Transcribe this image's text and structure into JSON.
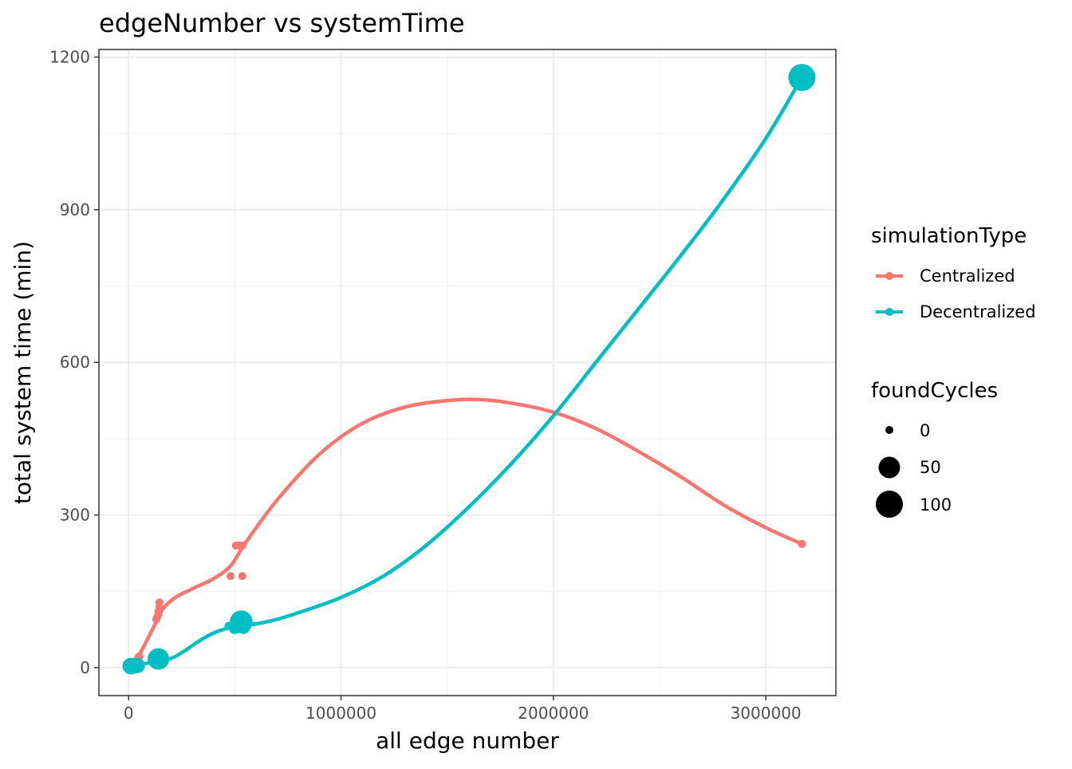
{
  "chart_data": {
    "type": "scatter",
    "title": "edgeNumber vs systemTime",
    "xlabel": "all edge number",
    "ylabel": "total system time (min)",
    "xlim": [
      -140000,
      3330000
    ],
    "ylim": [
      -55,
      1215
    ],
    "x_ticks": [
      0,
      1000000,
      2000000,
      3000000
    ],
    "x_tick_labels": [
      "0",
      "1000000",
      "2000000",
      "3000000"
    ],
    "y_ticks": [
      0,
      300,
      600,
      900,
      1200
    ],
    "y_tick_labels": [
      "0",
      "300",
      "600",
      "900",
      "1200"
    ],
    "grid": true,
    "legend_position": "right",
    "color_legend": {
      "title": "simulationType",
      "entries": [
        {
          "label": "Centralized",
          "color": "#F8766D"
        },
        {
          "label": "Decentralized",
          "color": "#00BFC4"
        }
      ]
    },
    "size_legend": {
      "title": "foundCycles",
      "entries": [
        {
          "label": "0",
          "value": 0
        },
        {
          "label": "50",
          "value": 50
        },
        {
          "label": "100",
          "value": 100
        }
      ]
    },
    "series": [
      {
        "name": "Centralized",
        "color": "#F8766D",
        "points": [
          {
            "x": 10000,
            "y": 2,
            "size": 0
          },
          {
            "x": 20000,
            "y": 5,
            "size": 0
          },
          {
            "x": 30000,
            "y": 10,
            "size": 0
          },
          {
            "x": 40000,
            "y": 15,
            "size": 0
          },
          {
            "x": 45000,
            "y": 20,
            "size": 0
          },
          {
            "x": 50000,
            "y": 22,
            "size": 0
          },
          {
            "x": 130000,
            "y": 95,
            "size": 0
          },
          {
            "x": 135000,
            "y": 100,
            "size": 0
          },
          {
            "x": 140000,
            "y": 105,
            "size": 0
          },
          {
            "x": 140000,
            "y": 110,
            "size": 0
          },
          {
            "x": 145000,
            "y": 120,
            "size": 0
          },
          {
            "x": 145000,
            "y": 128,
            "size": 0
          },
          {
            "x": 480000,
            "y": 180,
            "size": 0
          },
          {
            "x": 505000,
            "y": 240,
            "size": 0
          },
          {
            "x": 520000,
            "y": 240,
            "size": 0
          },
          {
            "x": 535000,
            "y": 240,
            "size": 0
          },
          {
            "x": 535000,
            "y": 180,
            "size": 0
          },
          {
            "x": 3170000,
            "y": 243,
            "size": 0
          }
        ],
        "smooth": [
          [
            10000,
            0
          ],
          [
            50000,
            25
          ],
          [
            130000,
            90
          ],
          [
            160000,
            115
          ],
          [
            220000,
            138
          ],
          [
            300000,
            155
          ],
          [
            400000,
            175
          ],
          [
            480000,
            200
          ],
          [
            550000,
            245
          ],
          [
            700000,
            330
          ],
          [
            900000,
            420
          ],
          [
            1100000,
            480
          ],
          [
            1300000,
            512
          ],
          [
            1500000,
            525
          ],
          [
            1640000,
            527
          ],
          [
            1800000,
            520
          ],
          [
            2000000,
            502
          ],
          [
            2200000,
            470
          ],
          [
            2400000,
            425
          ],
          [
            2600000,
            375
          ],
          [
            2800000,
            320
          ],
          [
            3000000,
            275
          ],
          [
            3170000,
            243
          ]
        ]
      },
      {
        "name": "Decentralized",
        "color": "#00BFC4",
        "points": [
          {
            "x": 10000,
            "y": 3,
            "size": 20
          },
          {
            "x": 20000,
            "y": 3,
            "size": 15
          },
          {
            "x": 40000,
            "y": 4,
            "size": 15
          },
          {
            "x": 140000,
            "y": 17,
            "size": 50
          },
          {
            "x": 470000,
            "y": 82,
            "size": 0
          },
          {
            "x": 500000,
            "y": 78,
            "size": 5
          },
          {
            "x": 530000,
            "y": 90,
            "size": 60
          },
          {
            "x": 540000,
            "y": 80,
            "size": 10
          },
          {
            "x": 3170000,
            "y": 1160,
            "size": 100
          }
        ],
        "smooth": [
          [
            10000,
            2
          ],
          [
            80000,
            8
          ],
          [
            140000,
            13
          ],
          [
            200000,
            18
          ],
          [
            260000,
            32
          ],
          [
            330000,
            52
          ],
          [
            400000,
            68
          ],
          [
            470000,
            78
          ],
          [
            530000,
            83
          ],
          [
            600000,
            86
          ],
          [
            700000,
            95
          ],
          [
            800000,
            108
          ],
          [
            1000000,
            138
          ],
          [
            1200000,
            180
          ],
          [
            1400000,
            240
          ],
          [
            1600000,
            315
          ],
          [
            1800000,
            400
          ],
          [
            2000000,
            495
          ],
          [
            2200000,
            600
          ],
          [
            2400000,
            705
          ],
          [
            2600000,
            810
          ],
          [
            2800000,
            920
          ],
          [
            3000000,
            1040
          ],
          [
            3170000,
            1160
          ]
        ]
      }
    ]
  }
}
